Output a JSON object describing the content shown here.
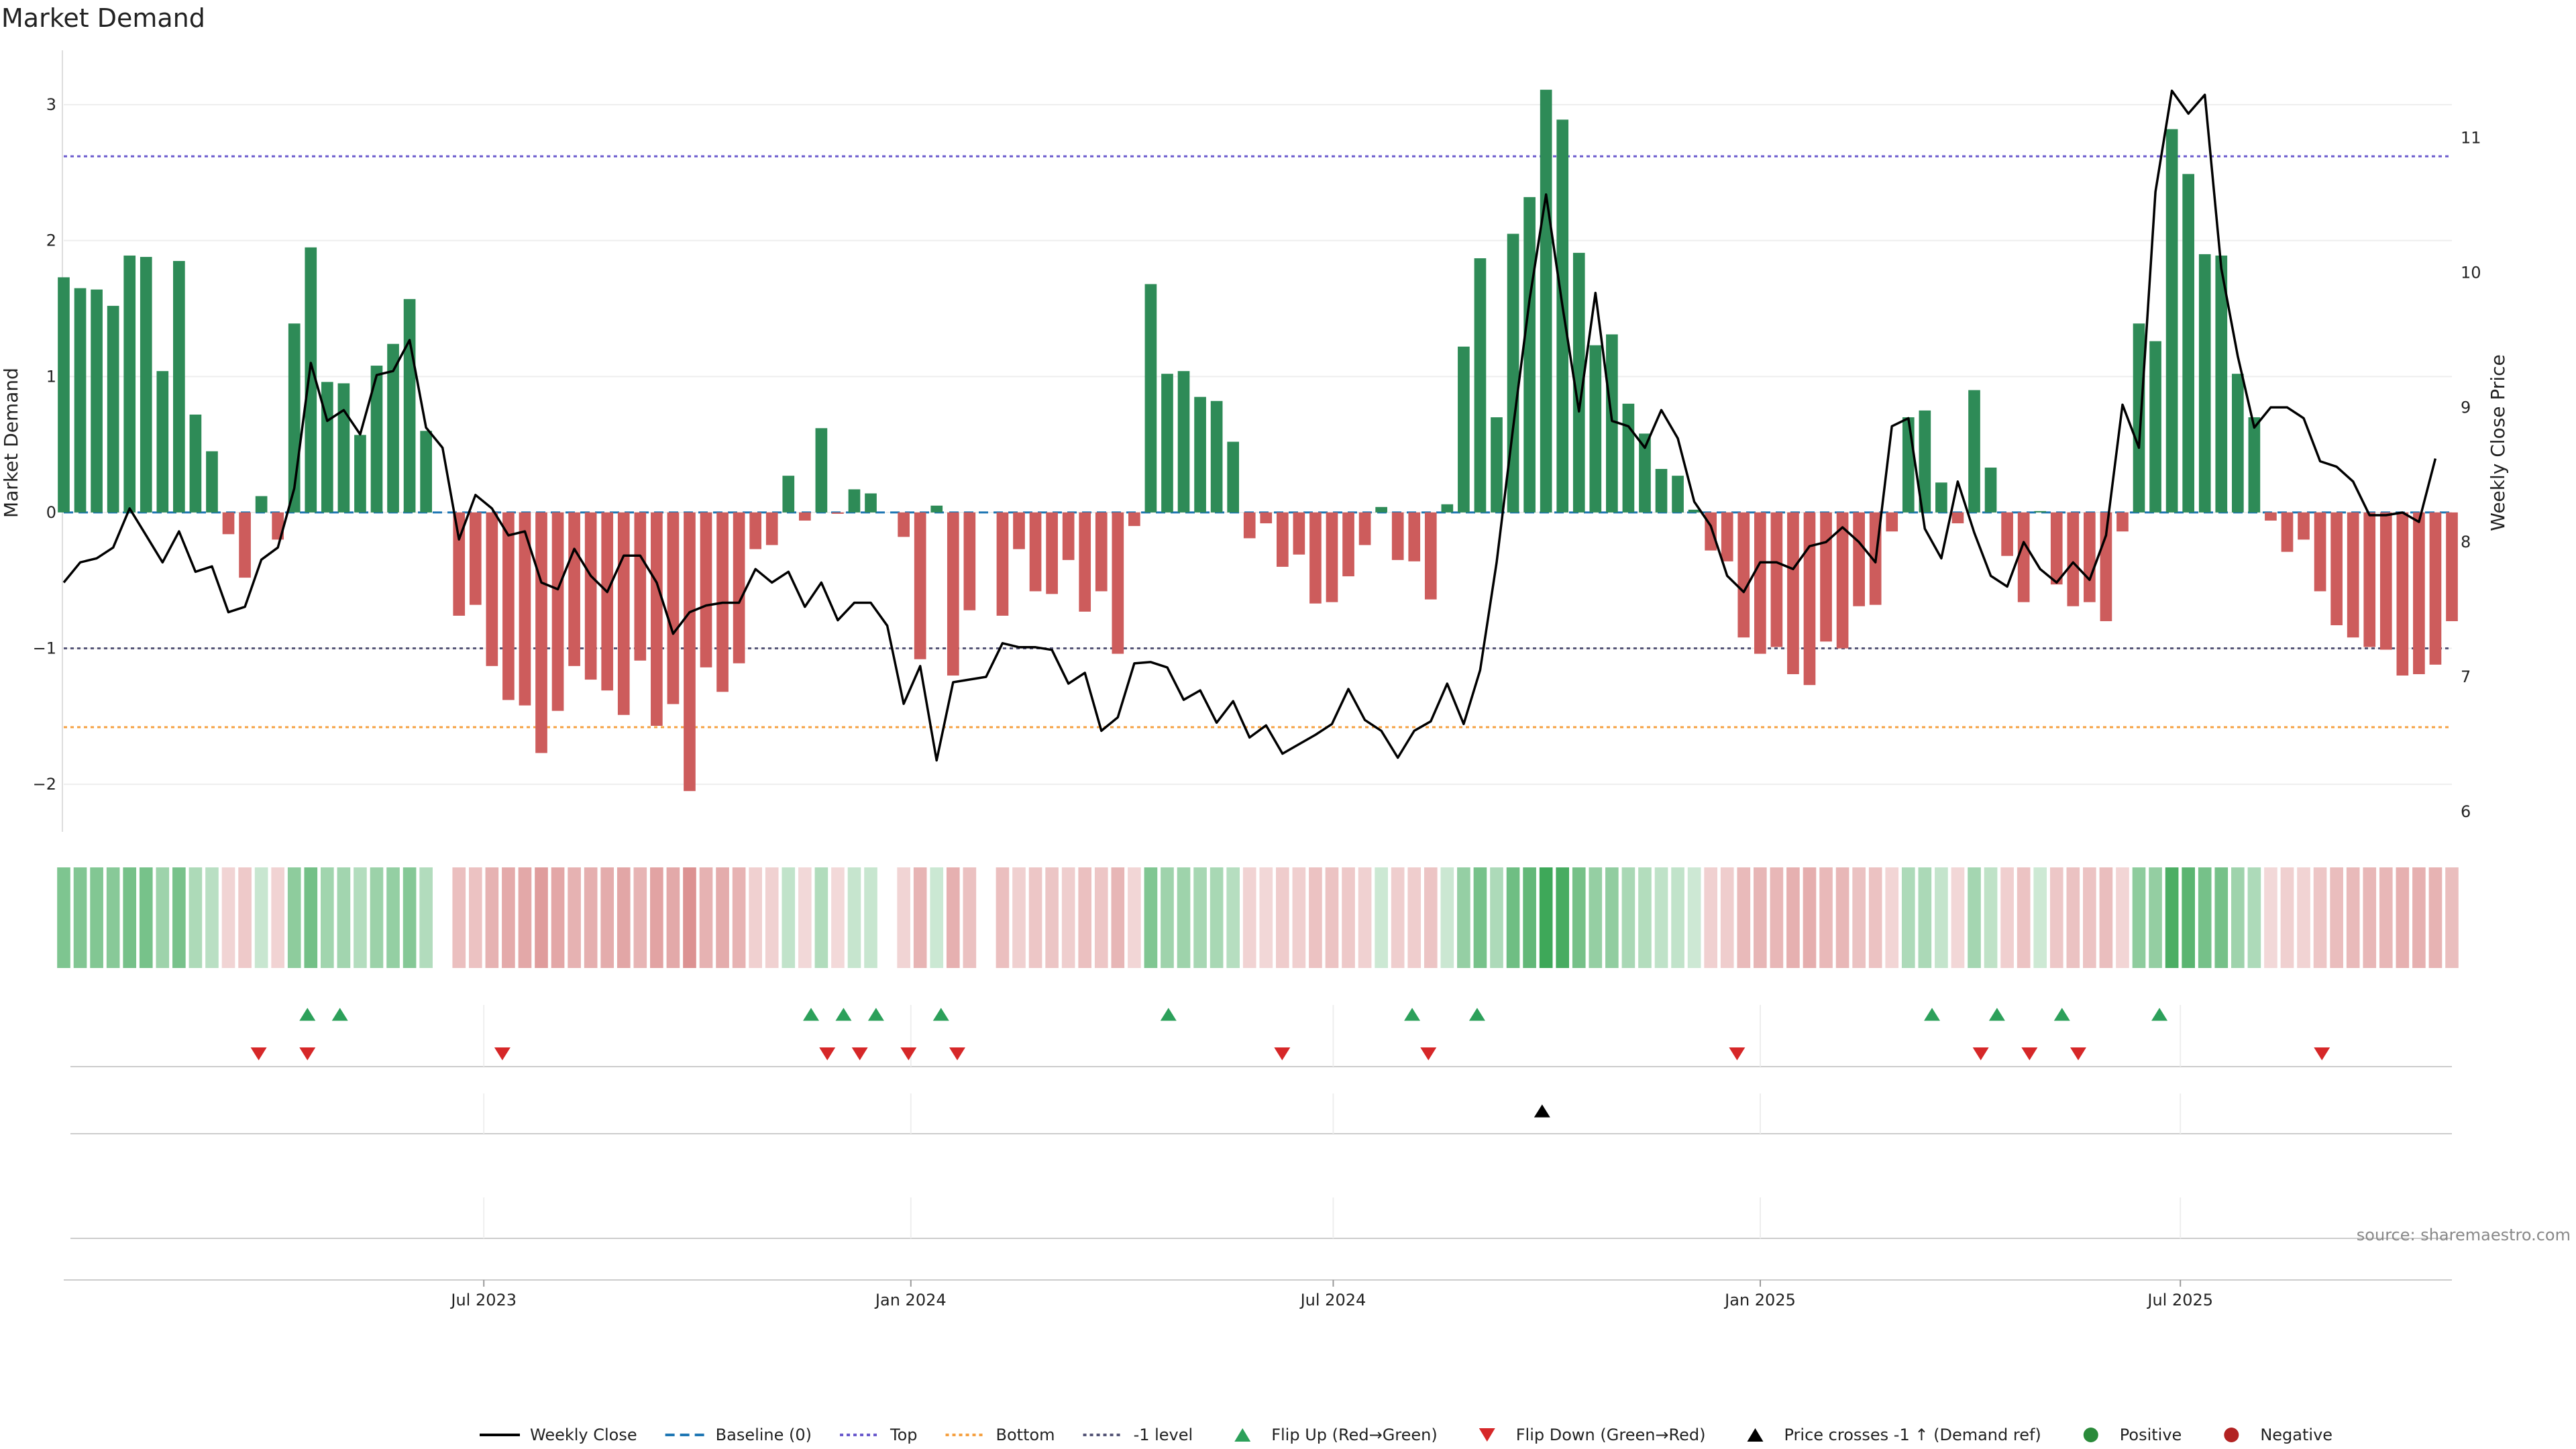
{
  "chart_data": {
    "type": "bar",
    "title": "Market Demand",
    "ylabel_left": "Market Demand",
    "ylabel_right": "Weekly Close Price",
    "source": "source: sharemaestro.com",
    "x_start": "2023-01-01",
    "x_end": "2025-10-26",
    "x_ticks": [
      {
        "label": "Jul 2023",
        "date": "2023-07-01"
      },
      {
        "label": "Jan 2024",
        "date": "2024-01-01"
      },
      {
        "label": "Jul 2024",
        "date": "2024-07-01"
      },
      {
        "label": "Jan 2025",
        "date": "2025-01-01"
      },
      {
        "label": "Jul 2025",
        "date": "2025-07-01"
      }
    ],
    "demand_axis": {
      "ylim": [
        -2.35,
        3.4
      ],
      "ticks": [
        {
          "v": 3,
          "label": "3"
        },
        {
          "v": 2,
          "label": "2"
        },
        {
          "v": 1,
          "label": "1"
        },
        {
          "v": 0,
          "label": "0"
        },
        {
          "v": -1,
          "label": "−1"
        },
        {
          "v": -2,
          "label": "−2"
        }
      ]
    },
    "price_axis": {
      "ylim": [
        5.85,
        11.65
      ],
      "ticks": [
        {
          "v": 6,
          "label": "6"
        },
        {
          "v": 7,
          "label": "7"
        },
        {
          "v": 8,
          "label": "8"
        },
        {
          "v": 9,
          "label": "9"
        },
        {
          "v": 10,
          "label": "10"
        },
        {
          "v": 11,
          "label": "11"
        }
      ]
    },
    "levels": {
      "top": 2.62,
      "bottom": -1.58,
      "minus_one": -1.0,
      "baseline": 0
    },
    "demand": [
      1.73,
      1.65,
      1.64,
      1.52,
      1.89,
      1.88,
      1.04,
      1.85,
      0.72,
      0.45,
      -0.16,
      -0.48,
      0.12,
      -0.2,
      1.39,
      1.95,
      0.96,
      0.95,
      0.57,
      1.08,
      1.24,
      1.57,
      0.6,
      0,
      -0.76,
      -0.68,
      -1.13,
      -1.38,
      -1.42,
      -1.77,
      -1.46,
      -1.13,
      -1.23,
      -1.31,
      -1.49,
      -1.09,
      -1.57,
      -1.41,
      -2.05,
      -1.14,
      -1.32,
      -1.11,
      -0.27,
      -0.24,
      0.27,
      -0.06,
      0.62,
      -0.01,
      0.17,
      0.14,
      0,
      -0.18,
      -1.08,
      0.05,
      -1.2,
      -0.72,
      0,
      -0.76,
      -0.27,
      -0.58,
      -0.6,
      -0.35,
      -0.73,
      -0.58,
      -1.04,
      -0.1,
      1.68,
      1.02,
      1.04,
      0.85,
      0.82,
      0.52,
      -0.19,
      -0.08,
      -0.4,
      -0.31,
      -0.67,
      -0.66,
      -0.47,
      -0.24,
      0.04,
      -0.35,
      -0.36,
      -0.64,
      0.06,
      1.22,
      1.87,
      0.7,
      2.05,
      2.32,
      3.11,
      2.89,
      1.91,
      1.23,
      1.31,
      0.8,
      0.58,
      0.32,
      0.27,
      0.02,
      -0.28,
      -0.36,
      -0.92,
      -1.04,
      -0.99,
      -1.19,
      -1.27,
      -0.95,
      -1.0,
      -0.69,
      -0.68,
      -0.14,
      0.7,
      0.75,
      0.22,
      -0.08,
      0.9,
      0.33,
      -0.32,
      -0.66,
      0.01,
      -0.53,
      -0.69,
      -0.66,
      -0.8,
      -0.14,
      1.39,
      1.26,
      2.82,
      2.49,
      1.9,
      1.89,
      1.02,
      0.7,
      -0.06,
      -0.29,
      -0.2,
      -0.58,
      -0.83,
      -0.92,
      -0.99,
      -1.01,
      -1.2,
      -1.19,
      -1.12,
      -0.8
    ],
    "weekly_close": [
      7.7,
      7.85,
      7.88,
      7.96,
      8.25,
      8.05,
      7.85,
      8.08,
      7.78,
      7.82,
      7.48,
      7.52,
      7.87,
      7.96,
      8.4,
      9.33,
      8.9,
      8.98,
      8.8,
      9.24,
      9.27,
      9.5,
      8.85,
      8.7,
      8.02,
      8.35,
      8.25,
      8.05,
      8.08,
      7.7,
      7.65,
      7.95,
      7.75,
      7.63,
      7.9,
      7.9,
      7.7,
      7.32,
      7.48,
      7.53,
      7.55,
      7.55,
      7.8,
      7.7,
      7.78,
      7.52,
      7.7,
      7.42,
      7.55,
      7.55,
      7.38,
      6.8,
      7.08,
      6.38,
      6.96,
      6.98,
      7.0,
      7.25,
      7.22,
      7.22,
      7.2,
      6.95,
      7.03,
      6.6,
      6.7,
      7.1,
      7.11,
      7.07,
      6.83,
      6.9,
      6.66,
      6.82,
      6.55,
      6.64,
      6.43,
      6.5,
      6.57,
      6.65,
      6.91,
      6.68,
      6.6,
      6.4,
      6.6,
      6.67,
      6.95,
      6.65,
      7.05,
      7.85,
      8.85,
      9.8,
      10.58,
      9.75,
      8.97,
      9.85,
      8.9,
      8.86,
      8.7,
      8.98,
      8.77,
      8.3,
      8.12,
      7.75,
      7.63,
      7.85,
      7.85,
      7.8,
      7.97,
      8.0,
      8.11,
      8.0,
      7.85,
      8.86,
      8.92,
      8.1,
      7.88,
      8.45,
      8.07,
      7.75,
      7.67,
      8.0,
      7.8,
      7.7,
      7.85,
      7.72,
      8.05,
      9.02,
      8.7,
      10.6,
      11.35,
      11.18,
      11.32,
      10.03,
      9.38,
      8.85,
      9.0,
      9.0,
      8.92,
      8.6,
      8.56,
      8.45,
      8.2,
      8.2,
      8.22,
      8.15,
      8.62
    ],
    "flip_up": [
      "2023-04-16",
      "2023-04-30",
      "2023-11-19",
      "2023-12-03",
      "2023-12-17",
      "2024-01-14",
      "2024-04-21",
      "2024-08-04",
      "2024-09-01",
      "2025-03-16",
      "2025-04-13",
      "2025-05-11",
      "2025-06-22"
    ],
    "flip_down": [
      "2023-03-26",
      "2023-04-16",
      "2023-07-09",
      "2023-11-26",
      "2023-12-10",
      "2023-12-31",
      "2024-01-21",
      "2024-06-09",
      "2024-08-11",
      "2024-12-22",
      "2025-04-06",
      "2025-04-27",
      "2025-05-18",
      "2025-08-31"
    ],
    "price_cross": [
      "2024-09-29"
    ],
    "legend": [
      {
        "label": "Weekly Close",
        "kind": "solid",
        "color": "#000000"
      },
      {
        "label": "Baseline (0)",
        "kind": "dash",
        "color": "#1f77b4"
      },
      {
        "label": "Top",
        "kind": "dot",
        "color": "#6a5acd"
      },
      {
        "label": "Bottom",
        "kind": "dot",
        "color": "#f5a142"
      },
      {
        "label": "-1 level",
        "kind": "dot",
        "color": "#555577"
      },
      {
        "label": "Flip Up (Red→Green)",
        "kind": "tri-up",
        "color": "#2ca05a"
      },
      {
        "label": "Flip Down (Green→Red)",
        "kind": "tri-down",
        "color": "#d62728"
      },
      {
        "label": "Price crosses -1 ↑ (Demand ref)",
        "kind": "tri-up",
        "color": "#000000"
      },
      {
        "label": "Positive",
        "kind": "dot-marker",
        "color": "#2a8a3a"
      },
      {
        "label": "Negative",
        "kind": "dot-marker",
        "color": "#b22222"
      }
    ],
    "colors": {
      "positive": "#2e8b57",
      "negative": "#cd5c5c"
    }
  }
}
